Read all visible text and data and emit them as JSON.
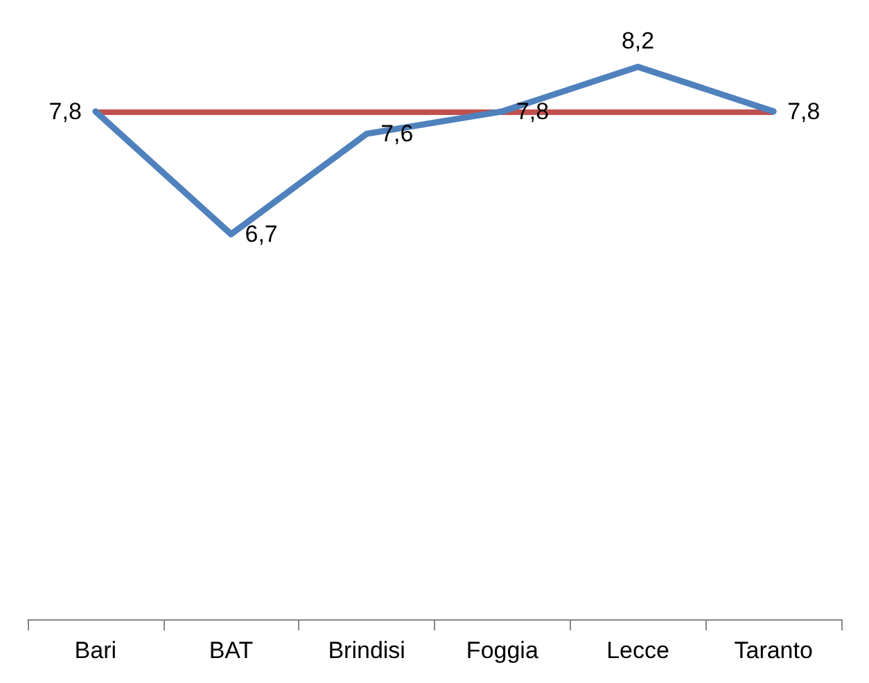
{
  "chart_data": {
    "type": "line",
    "categories": [
      "Bari",
      "BAT",
      "Brindisi",
      "Foggia",
      "Lecce",
      "Taranto"
    ],
    "series": [
      {
        "color": "#4f81bd",
        "values": [
          7.8,
          6.7,
          7.6,
          7.8,
          8.2,
          7.8
        ],
        "value_labels": [
          "7,8",
          "6,7",
          "7,6",
          "7,8",
          "8,2",
          "7,8"
        ]
      }
    ],
    "tick_labels": "x",
    "grid": false,
    "marker": "none",
    "line_style": "solid",
    "ref_lines": [
      {
        "axis": "y",
        "value": 7.8,
        "color": "#c0504d"
      }
    ]
  }
}
